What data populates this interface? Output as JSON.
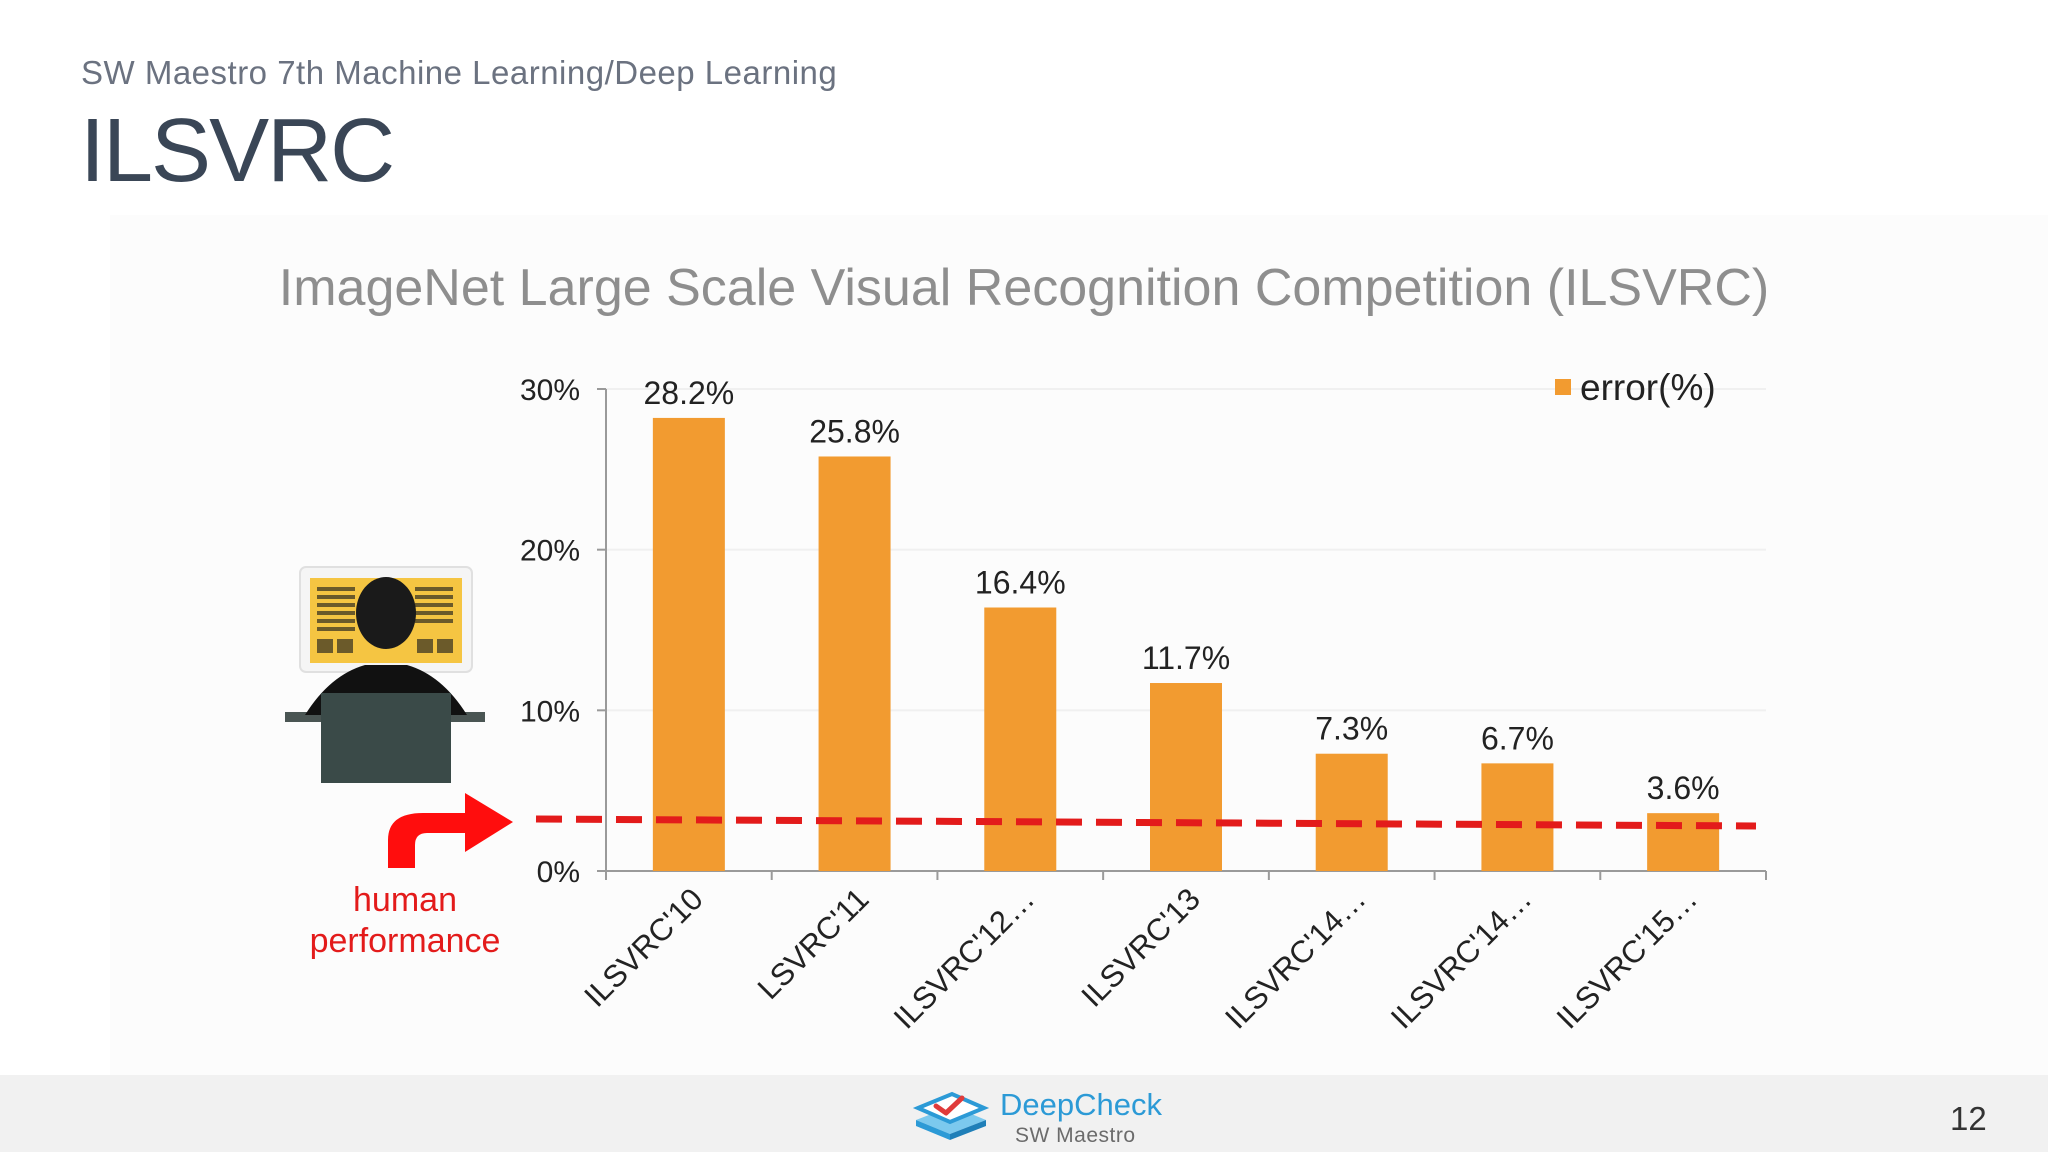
{
  "header": {
    "subtitle": "SW Maestro 7th Machine Learning/Deep Learning",
    "title": "ILSVRC"
  },
  "chart_data": {
    "type": "bar",
    "title": "ImageNet Large Scale Visual Recognition Competition (ILSVRC)",
    "xlabel": "",
    "ylabel": "",
    "categories": [
      "ILSVRC'10",
      "LSVRC'11",
      "ILSVRC'12…",
      "ILSVRC'13",
      "ILSVRC'14…",
      "ILSVRC'14…",
      "ILSVRC'15…"
    ],
    "series": [
      {
        "name": "error(%)",
        "values": [
          28.2,
          25.8,
          16.4,
          11.7,
          7.3,
          6.7,
          3.6
        ],
        "color": "#f29b30"
      }
    ],
    "data_labels": [
      "28.2%",
      "25.8%",
      "16.4%",
      "11.7%",
      "7.3%",
      "6.7%",
      "3.6%"
    ],
    "ylim": [
      0,
      30
    ],
    "y_ticks": [
      "0%",
      "10%",
      "20%",
      "30%"
    ],
    "y_tick_values": [
      0,
      10,
      20,
      30
    ],
    "legend_position": "top-right",
    "grid": true,
    "human_performance": {
      "value": 3,
      "label": "human performance",
      "color": "#e31b1b",
      "style": "dashed"
    }
  },
  "annotation": {
    "person_icon": "person-at-computer-icon",
    "arrow_icon": "curved-arrow-icon"
  },
  "footer": {
    "logo_icon": "deepcheck-logo-icon",
    "brand_name": "DeepCheck",
    "brand_sub": "SW Maestro",
    "page_number": "12"
  }
}
